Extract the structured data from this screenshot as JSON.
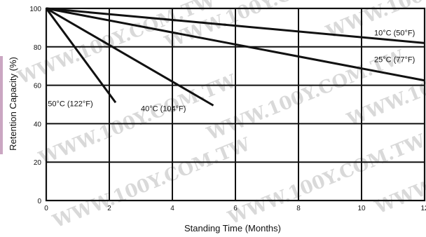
{
  "chart_data": {
    "type": "line",
    "title": "",
    "xlabel": "Standing Time (Months)",
    "ylabel": "Retention Capacity (%)",
    "xlim": [
      0,
      12
    ],
    "ylim": [
      0,
      100
    ],
    "x_ticks": [
      "0",
      "2",
      "4",
      "6",
      "8",
      "10",
      "12"
    ],
    "y_ticks": [
      "0",
      "20",
      "40",
      "60",
      "80",
      "100"
    ],
    "grid": true,
    "series": [
      {
        "name": "10°C (50°F)",
        "x": [
          0,
          12
        ],
        "y": [
          100,
          82
        ]
      },
      {
        "name": "25°C (77°F)",
        "x": [
          0,
          12
        ],
        "y": [
          100,
          62.5
        ]
      },
      {
        "name": "40°C (104°F)",
        "x": [
          0,
          5.3
        ],
        "y": [
          100,
          49.5
        ]
      },
      {
        "name": "50°C (122°F)",
        "x": [
          0,
          2.2
        ],
        "y": [
          100,
          51
        ]
      }
    ]
  },
  "watermark": "WWW.100Y.COM.TW"
}
